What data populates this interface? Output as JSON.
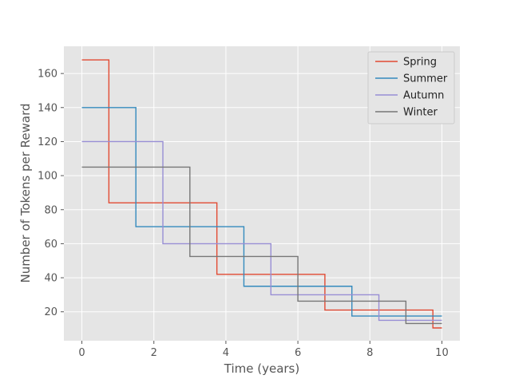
{
  "chart_data": {
    "type": "line",
    "step": "post",
    "xlabel": "Time (years)",
    "ylabel": "Number of Tokens per Reward",
    "xlim": [
      -0.5,
      10.5
    ],
    "ylim": [
      3,
      176
    ],
    "xticks": [
      0,
      2,
      4,
      6,
      8,
      10
    ],
    "yticks": [
      20,
      40,
      60,
      80,
      100,
      120,
      140,
      160
    ],
    "grid": true,
    "legend_position": "top-right",
    "series": [
      {
        "name": "Spring",
        "color": "#E24A33",
        "x": [
          0,
          0.75,
          3.75,
          6.75,
          9.75,
          10
        ],
        "y": [
          168,
          84,
          42,
          21,
          10.5,
          10.5
        ]
      },
      {
        "name": "Summer",
        "color": "#348ABD",
        "x": [
          0,
          1.5,
          4.5,
          7.5,
          10
        ],
        "y": [
          140,
          70,
          35,
          17.5,
          17.5
        ]
      },
      {
        "name": "Autumn",
        "color": "#988ED5",
        "x": [
          0,
          2.25,
          5.25,
          8.25,
          10
        ],
        "y": [
          120,
          60,
          30,
          15,
          15
        ]
      },
      {
        "name": "Winter",
        "color": "#777777",
        "x": [
          0,
          3,
          6,
          9,
          10
        ],
        "y": [
          105,
          52.5,
          26.25,
          13.125,
          13.125
        ]
      }
    ]
  }
}
